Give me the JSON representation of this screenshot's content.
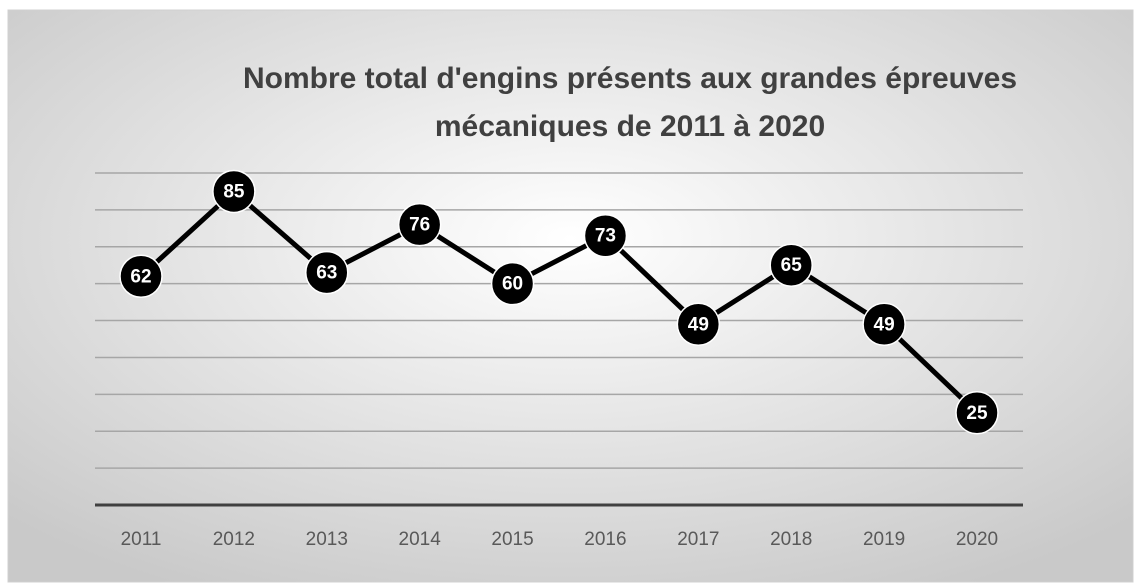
{
  "chart_data": {
    "type": "line",
    "title": [
      "Nombre total d'engins présents aux grandes épreuves",
      "mécaniques de 2011 à 2020"
    ],
    "categories": [
      "2011",
      "2012",
      "2013",
      "2014",
      "2015",
      "2016",
      "2017",
      "2018",
      "2019",
      "2020"
    ],
    "values": [
      62,
      85,
      63,
      76,
      60,
      73,
      49,
      65,
      49,
      25
    ],
    "color": "#000000",
    "ylim": [
      0,
      90
    ],
    "yticks": [
      0,
      10,
      20,
      30,
      40,
      50,
      60,
      70,
      80,
      90
    ],
    "grid": true
  }
}
